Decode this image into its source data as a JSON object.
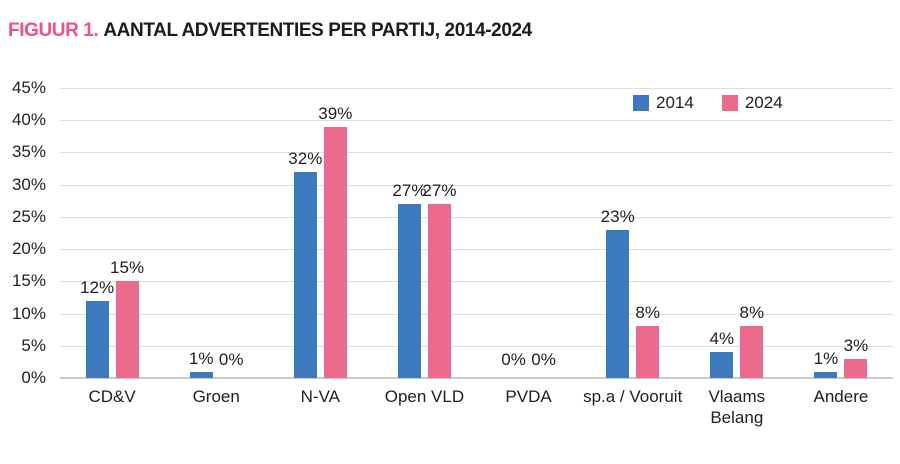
{
  "chart_data": {
    "type": "bar",
    "title_prefix": "FIGUUR 1.",
    "title": "AANTAL ADVERTENTIES PER PARTIJ, 2014-2024",
    "categories": [
      "CD&V",
      "Groen",
      "N-VA",
      "Open VLD",
      "PVDA",
      "sp.a / Vooruit",
      "Vlaams\nBelang",
      "Andere"
    ],
    "series": [
      {
        "name": "2014",
        "color": "#3D79BD",
        "values": [
          12,
          1,
          32,
          27,
          0,
          23,
          4,
          1
        ]
      },
      {
        "name": "2024",
        "color": "#EC6B8D",
        "values": [
          15,
          0,
          39,
          27,
          0,
          8,
          8,
          3
        ]
      }
    ],
    "unit": "%",
    "ylim": [
      0,
      45
    ],
    "ytick_step": 5,
    "ytick_labels": [
      "45%",
      "40%",
      "35%",
      "30%",
      "25%",
      "20%",
      "15%",
      "10%",
      "5%",
      "0%"
    ],
    "grid": true,
    "legend_position": "top-right",
    "colors": {
      "title_prefix": "#F0527F",
      "title_text": "#1c1c1c",
      "grid_line": "#DEDEDE",
      "axis_line": "#C9C9C9",
      "text": "#1f1f1f",
      "background": "#FFFFFF"
    }
  }
}
